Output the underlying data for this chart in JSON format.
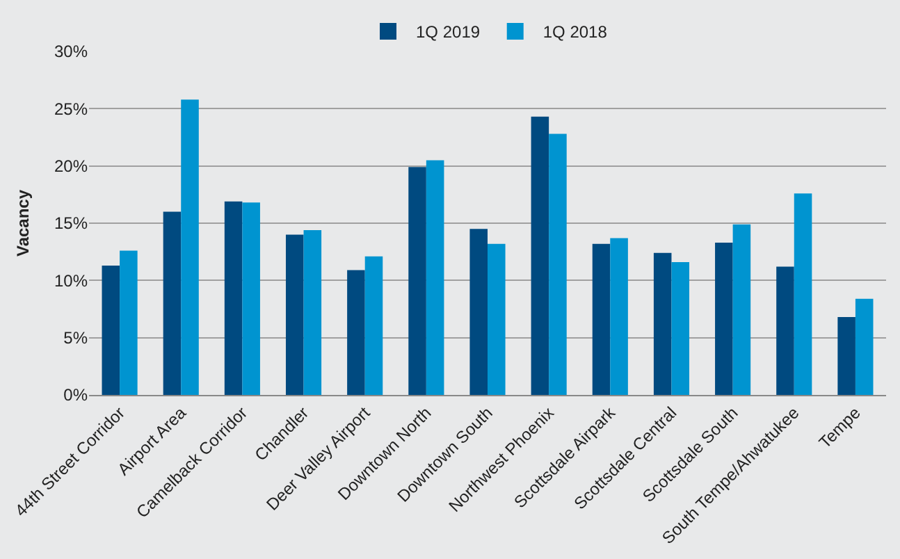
{
  "chart_data": {
    "type": "bar",
    "ylabel": "Vacancy",
    "categories": [
      "44th Street Corridor",
      "Airport Area",
      "Camelback Corridor",
      "Chandler",
      "Deer Valley Airport",
      "Downtown North",
      "Downtown South",
      "Northwest Phoenix",
      "Scottsdale Airpark",
      "Scottsdale Central",
      "Scottsdale South",
      "South Tempe/Ahwatukee",
      "Tempe"
    ],
    "series": [
      {
        "name": "1Q 2019",
        "color": "#004a80",
        "values": [
          11.3,
          16.0,
          16.9,
          14.0,
          10.9,
          19.9,
          14.5,
          24.3,
          13.2,
          12.4,
          13.3,
          11.2,
          6.8
        ]
      },
      {
        "name": "1Q 2018",
        "color": "#0094d0",
        "values": [
          12.6,
          25.8,
          16.8,
          14.4,
          12.1,
          20.5,
          13.2,
          22.8,
          13.7,
          11.6,
          14.9,
          17.6,
          8.4
        ]
      }
    ],
    "ylim": [
      0,
      30
    ],
    "yticks": [
      {
        "value": 0,
        "label": "0%"
      },
      {
        "value": 5,
        "label": "5%"
      },
      {
        "value": 10,
        "label": "10%"
      },
      {
        "value": 15,
        "label": "15%"
      },
      {
        "value": 20,
        "label": "20%"
      },
      {
        "value": 25,
        "label": "25%"
      },
      {
        "value": 30,
        "label": "30%"
      }
    ],
    "grid": "y",
    "legend": "top"
  }
}
